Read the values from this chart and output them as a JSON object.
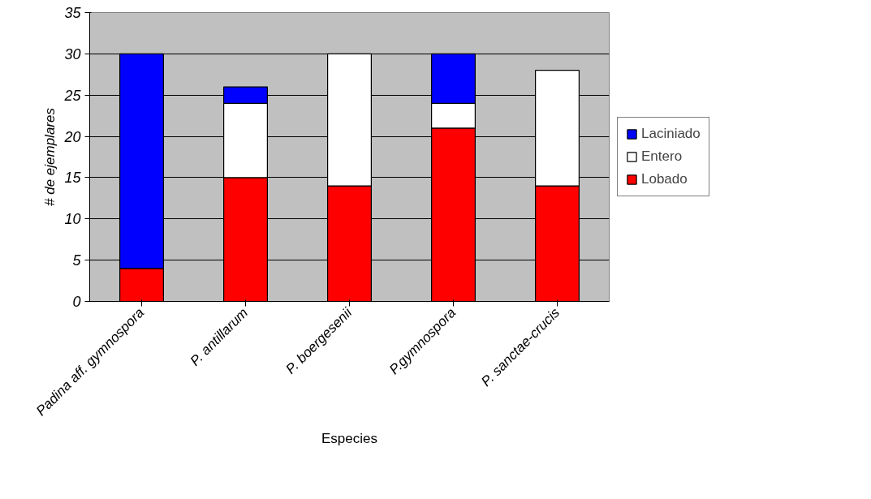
{
  "chart_data": {
    "type": "bar",
    "stacked": true,
    "xlabel": "Especies",
    "ylabel": "# de ejemplares",
    "categories": [
      "Padina aff. gymnospora",
      "P. antillarum",
      "P. boergesenii",
      "P.gymnospora",
      "P. sanctae-crucis"
    ],
    "series": [
      {
        "name": "Lobado",
        "color": "#ff0000",
        "values": [
          4,
          15,
          14,
          21,
          14
        ]
      },
      {
        "name": "Entero",
        "color": "#ffffff",
        "values": [
          0,
          9,
          16,
          3,
          14
        ]
      },
      {
        "name": "Laciniado",
        "color": "#0000ff",
        "values": [
          26,
          2,
          0,
          6,
          0
        ]
      }
    ],
    "ylim": [
      0,
      35
    ],
    "yticks": [
      0,
      5,
      10,
      15,
      20,
      25,
      30,
      35
    ],
    "grid": "y",
    "legend": "right"
  }
}
